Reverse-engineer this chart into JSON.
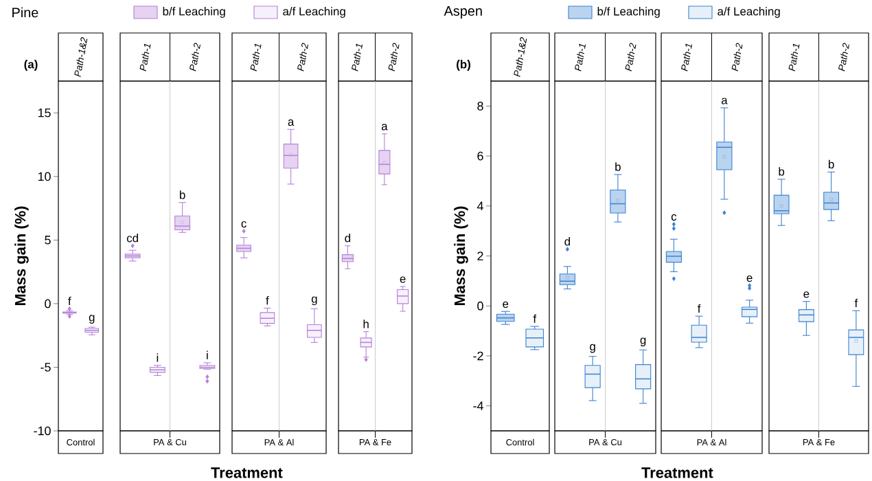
{
  "chart_data": [
    {
      "type": "box",
      "title": "Pine",
      "ylabel": "Mass gain (%)",
      "xlabel": "Control",
      "annotations": [
        "(a)"
      ],
      "categories": [
        "Path-1&2"
      ],
      "ylim": [
        -10,
        17.5
      ],
      "yticks": [
        -10,
        -5,
        0,
        5,
        10,
        15
      ],
      "series": [
        {
          "color": "#b580d8",
          "value_labels": [
            "f"
          ],
          "boxes": [
            {
              "low": -0.85,
              "q1": -0.75,
              "median": -0.7,
              "q3": -0.65,
              "high": -0.55,
              "outliers": [
                -0.4,
                -1.0
              ]
            }
          ]
        },
        {
          "color": "#b580d8",
          "value_labels": [
            "g"
          ],
          "boxes": [
            {
              "low": -2.45,
              "q1": -2.25,
              "median": -2.1,
              "q3": -1.95,
              "high": -1.85
            }
          ]
        }
      ]
    },
    {
      "type": "box",
      "xlabel": "PA & Cu",
      "categories": [
        "Path-1",
        "Path-2"
      ],
      "ylim": [
        -10,
        17.5
      ],
      "tick_labels": "x",
      "legend": "top",
      "series": [
        {
          "name": "b/f Leaching",
          "color": "#b580d8",
          "value_labels": [
            "cd",
            "b"
          ],
          "boxes": [
            {
              "low": 3.35,
              "q1": 3.6,
              "median": 3.75,
              "q3": 3.9,
              "high": 4.2,
              "outliers": [
                4.55
              ]
            },
            {
              "low": 5.6,
              "q1": 5.8,
              "median": 6.1,
              "q3": 6.9,
              "high": 7.95,
              "mean": 6.4
            }
          ]
        },
        {
          "name": "a/f Leaching",
          "color": "#b580d8",
          "value_labels": [
            "i",
            "i"
          ],
          "boxes": [
            {
              "low": -5.65,
              "q1": -5.4,
              "median": -5.2,
              "q3": -5.0,
              "high": -4.85
            },
            {
              "low": -5.15,
              "q1": -5.1,
              "median": -5.0,
              "q3": -4.85,
              "high": -4.65,
              "outliers": [
                -5.75,
                -6.1
              ]
            }
          ]
        }
      ]
    },
    {
      "type": "box",
      "xlabel": "PA & Al",
      "annotations": [
        "Treatment"
      ],
      "categories": [
        "Path-1",
        "Path-2"
      ],
      "ylim": [
        -10,
        17.5
      ],
      "tick_labels": "x",
      "series": [
        {
          "color": "#b580d8",
          "value_labels": [
            "c",
            "a"
          ],
          "boxes": [
            {
              "low": 3.6,
              "q1": 4.1,
              "median": 4.35,
              "q3": 4.6,
              "high": 5.2,
              "outliers": [
                5.7
              ]
            },
            {
              "low": 9.4,
              "q1": 10.65,
              "median": 11.65,
              "q3": 12.55,
              "high": 13.7,
              "mean": 11.7
            }
          ]
        },
        {
          "color": "#b580d8",
          "value_labels": [
            "f",
            "g"
          ],
          "boxes": [
            {
              "low": -1.75,
              "q1": -1.55,
              "median": -1.15,
              "q3": -0.7,
              "high": -0.35
            },
            {
              "low": -3.05,
              "q1": -2.65,
              "median": -2.1,
              "q3": -1.65,
              "high": -0.4
            }
          ]
        }
      ]
    },
    {
      "type": "box",
      "xlabel": "PA & Fe",
      "categories": [
        "Path-1",
        "Path-2"
      ],
      "ylim": [
        -10,
        17.5
      ],
      "tick_labels": "x",
      "series": [
        {
          "color": "#b580d8",
          "value_labels": [
            "d",
            "a"
          ],
          "boxes": [
            {
              "low": 2.75,
              "q1": 3.3,
              "median": 3.55,
              "q3": 3.85,
              "high": 4.55
            },
            {
              "low": 9.35,
              "q1": 10.2,
              "median": 10.95,
              "q3": 12.05,
              "high": 13.35,
              "mean": 11.1
            }
          ]
        },
        {
          "color": "#b580d8",
          "value_labels": [
            "h",
            "e"
          ],
          "boxes": [
            {
              "low": -4.2,
              "q1": -3.4,
              "median": -3.05,
              "q3": -2.7,
              "high": -2.2,
              "outliers": [
                -4.4
              ]
            },
            {
              "low": -0.6,
              "q1": 0,
              "median": 0.6,
              "q3": 1.1,
              "high": 1.35
            }
          ]
        }
      ]
    },
    {
      "type": "box",
      "title": "Aspen",
      "ylabel": "Mass gain (%)",
      "xlabel": "Control",
      "annotations": [
        "(b)"
      ],
      "categories": [
        "Path-1&2"
      ],
      "ylim": [
        -5,
        9
      ],
      "yticks": [
        -4,
        -2,
        0,
        2,
        4,
        6,
        8
      ],
      "series": [
        {
          "color": "#3a82d0",
          "value_labels": [
            "e"
          ],
          "boxes": [
            {
              "low": -0.74,
              "q1": -0.62,
              "median": -0.48,
              "q3": -0.33,
              "high": -0.22
            }
          ]
        },
        {
          "color": "#3a82d0",
          "value_labels": [
            "f"
          ],
          "boxes": [
            {
              "low": -1.75,
              "q1": -1.64,
              "median": -1.28,
              "q3": -0.93,
              "high": -0.82
            }
          ]
        }
      ]
    },
    {
      "type": "box",
      "xlabel": "PA & Cu",
      "categories": [
        "Path-1",
        "Path-2"
      ],
      "ylim": [
        -5,
        9
      ],
      "tick_labels": "x",
      "legend": "top",
      "series": [
        {
          "name": "b/f Leaching",
          "color": "#3a82d0",
          "value_labels": [
            "d",
            "b"
          ],
          "boxes": [
            {
              "low": 0.68,
              "q1": 0.85,
              "median": 0.99,
              "q3": 1.28,
              "high": 1.58,
              "mean": 1.13,
              "outliers": [
                2.27
              ]
            },
            {
              "low": 3.36,
              "q1": 3.72,
              "median": 4.09,
              "q3": 4.64,
              "high": 5.26,
              "mean": 4.22
            }
          ]
        },
        {
          "name": "a/f Leaching",
          "color": "#3a82d0",
          "value_labels": [
            "g",
            "g"
          ],
          "boxes": [
            {
              "low": -3.79,
              "q1": -3.27,
              "median": -2.73,
              "q3": -2.38,
              "high": -2.02
            },
            {
              "low": -3.9,
              "q1": -3.32,
              "median": -2.92,
              "q3": -2.35,
              "high": -1.76
            }
          ]
        }
      ]
    },
    {
      "type": "box",
      "xlabel": "PA & Al",
      "annotations": [
        "Treatment"
      ],
      "categories": [
        "Path-1",
        "Path-2"
      ],
      "ylim": [
        -5,
        9
      ],
      "tick_labels": "x",
      "series": [
        {
          "color": "#3a82d0",
          "value_labels": [
            "c",
            "a"
          ],
          "boxes": [
            {
              "low": 1.37,
              "q1": 1.75,
              "median": 1.99,
              "q3": 2.18,
              "high": 2.67,
              "outliers": [
                3.27,
                3.1,
                1.09
              ]
            },
            {
              "low": 4.27,
              "q1": 5.45,
              "median": 6.35,
              "q3": 6.56,
              "high": 7.93,
              "mean": 5.97,
              "outliers": [
                3.73
              ]
            }
          ]
        },
        {
          "color": "#3a82d0",
          "value_labels": [
            "f",
            "e"
          ],
          "boxes": [
            {
              "low": -1.67,
              "q1": -1.45,
              "median": -1.26,
              "q3": -0.77,
              "high": -0.41
            },
            {
              "low": -0.69,
              "q1": -0.43,
              "median": -0.14,
              "q3": -0.05,
              "high": 0.23,
              "outliers": [
                0.82,
                0.71
              ]
            }
          ]
        }
      ]
    },
    {
      "type": "box",
      "xlabel": "PA & Fe",
      "categories": [
        "Path-1",
        "Path-2"
      ],
      "ylim": [
        -5,
        9
      ],
      "tick_labels": "x",
      "series": [
        {
          "color": "#3a82d0",
          "value_labels": [
            "b",
            "b"
          ],
          "boxes": [
            {
              "low": 3.22,
              "q1": 3.69,
              "median": 3.81,
              "q3": 4.43,
              "high": 5.07,
              "mean": 4.0
            },
            {
              "low": 3.41,
              "q1": 3.86,
              "median": 4.12,
              "q3": 4.55,
              "high": 5.36,
              "mean": 4.26
            }
          ]
        },
        {
          "color": "#3a82d0",
          "value_labels": [
            "e",
            "f"
          ],
          "boxes": [
            {
              "low": -1.18,
              "q1": -0.63,
              "median": -0.36,
              "q3": -0.15,
              "high": 0.18
            },
            {
              "low": -3.22,
              "q1": -1.95,
              "median": -1.26,
              "q3": -0.96,
              "high": -0.19,
              "mean": -1.4
            }
          ]
        }
      ]
    }
  ]
}
